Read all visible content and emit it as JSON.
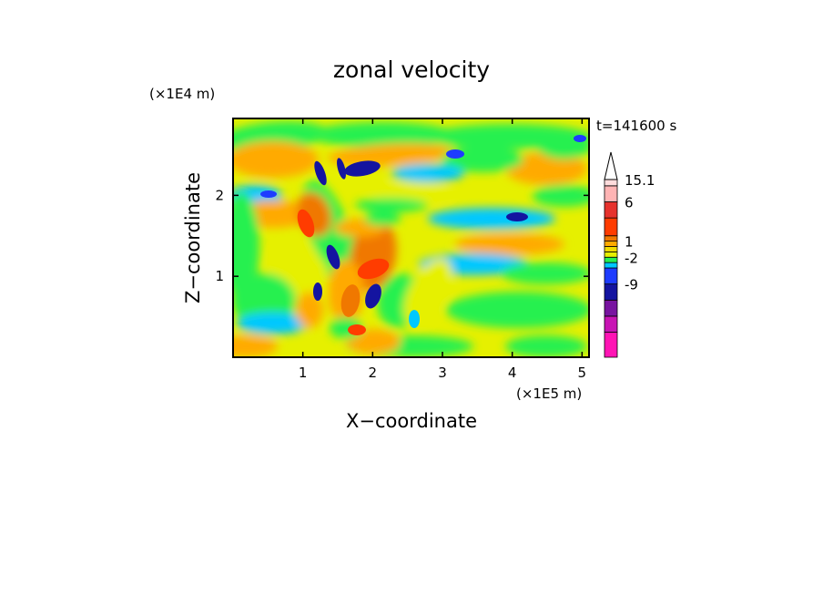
{
  "chart_data": {
    "type": "heatmap",
    "title": "zonal velocity",
    "xlabel": "X−coordinate",
    "ylabel": "Z−coordinate",
    "x_unit": "(×1E5 m)",
    "y_unit": "(×1E4 m)",
    "time_label": "t=141600 s",
    "xlim": [
      0,
      5.1
    ],
    "ylim": [
      0,
      2.95
    ],
    "xticks": [
      1,
      2,
      3,
      4,
      5
    ],
    "yticks": [
      1,
      2
    ],
    "colorbar": {
      "levels": [
        "",
        "",
        "",
        "-9",
        "",
        "",
        "-2",
        "",
        "",
        "1",
        "",
        "",
        "6",
        "",
        "15.1"
      ],
      "colors": [
        "#ff14b4",
        "#c814b4",
        "#7814a0",
        "#1414a0",
        "#1e3cff",
        "#00c8ff",
        "#28f050",
        "#e6f000",
        "#f0dc00",
        "#ffaa00",
        "#f07800",
        "#ff3c00",
        "#e6322d",
        "#ffb4b4",
        "#ffdcdc"
      ],
      "extend_max": true
    },
    "fields": {
      "background": "#e6f000",
      "regions": [
        {
          "x": 0.9,
          "z": 2.15,
          "color": "#ffaa00"
        },
        {
          "x": 1.5,
          "z": 1.2,
          "color": "#f07800"
        },
        {
          "x": 1.9,
          "z": 2.4,
          "color": "#1414a0"
        },
        {
          "x": 3.7,
          "z": 0.6,
          "color": "#28f050"
        },
        {
          "x": 4.3,
          "z": 1.4,
          "color": "#ffaa00"
        },
        {
          "x": 4.1,
          "z": 2.2,
          "color": "#00c8ff"
        }
      ]
    }
  }
}
